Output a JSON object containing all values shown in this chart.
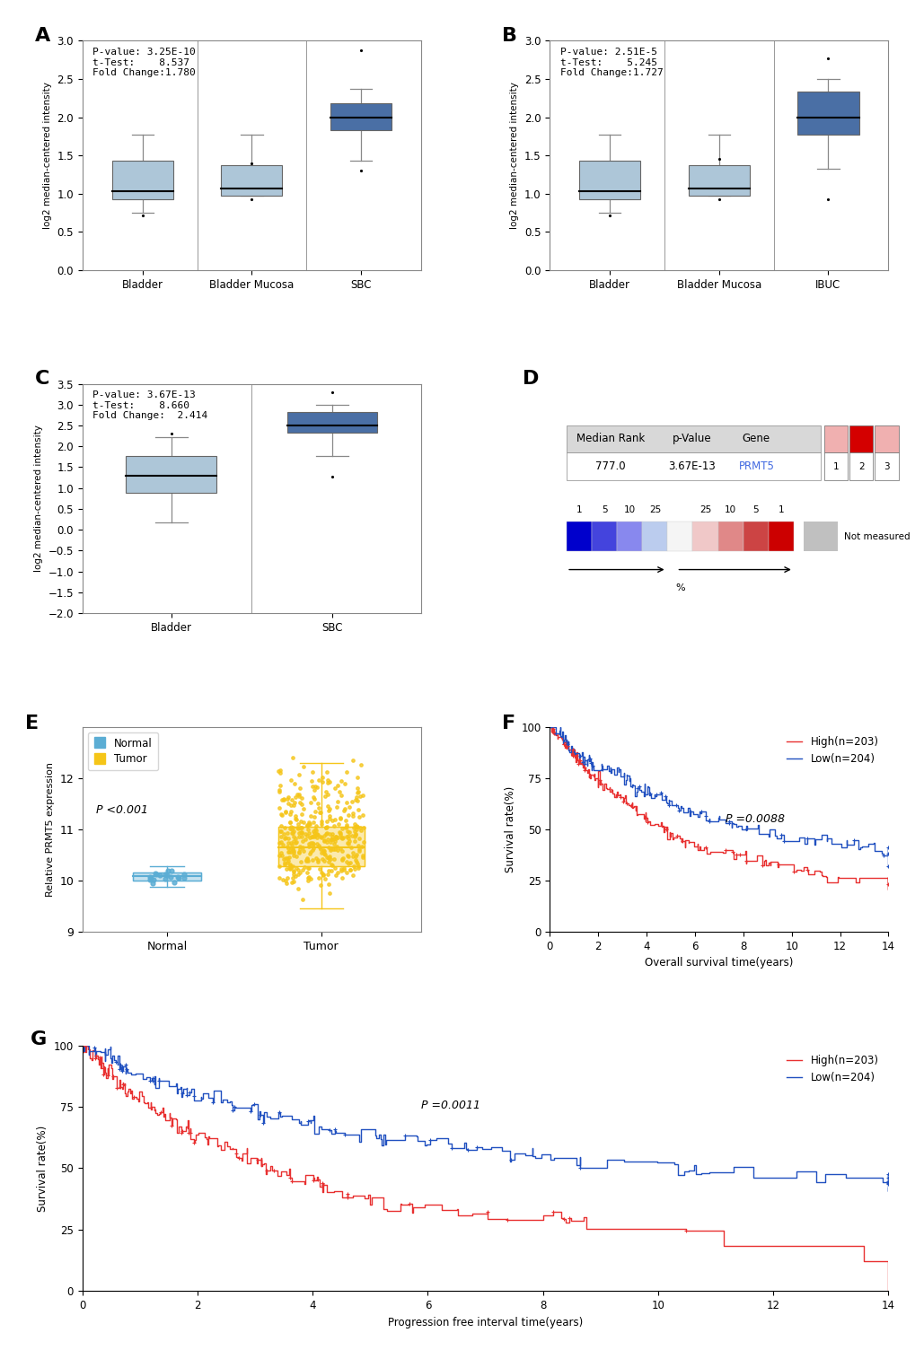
{
  "panel_A": {
    "title": "A",
    "annotation": "P-value: 3.25E-10\nt-Test:    8.537\nFold Change:1.780",
    "ylabel": "log2 median-centered intensity",
    "ylim": [
      0.0,
      3.0
    ],
    "yticks": [
      0.0,
      0.5,
      1.0,
      1.5,
      2.0,
      2.5,
      3.0
    ],
    "categories": [
      "Bladder",
      "Bladder Mucosa",
      "SBC"
    ],
    "boxes": [
      {
        "med": 1.03,
        "q1": 0.93,
        "q3": 1.43,
        "whislo": 0.75,
        "whishi": 1.77,
        "fliers_low": [
          0.72
        ],
        "fliers_high": [],
        "color": "#adc6d8"
      },
      {
        "med": 1.07,
        "q1": 0.97,
        "q3": 1.37,
        "whislo": 0.97,
        "whishi": 1.77,
        "fliers_low": [
          0.93
        ],
        "fliers_high": [
          1.4
        ],
        "color": "#adc6d8"
      },
      {
        "med": 2.0,
        "q1": 1.83,
        "q3": 2.18,
        "whislo": 1.43,
        "whishi": 2.37,
        "fliers_low": [
          1.3
        ],
        "fliers_high": [
          2.87
        ],
        "color": "#4a6fa5"
      }
    ]
  },
  "panel_B": {
    "title": "B",
    "annotation": "P-value: 2.51E-5\nt-Test:    5.245\nFold Change:1.727",
    "ylabel": "log2 median-centered intensity",
    "ylim": [
      0.0,
      3.0
    ],
    "yticks": [
      0.0,
      0.5,
      1.0,
      1.5,
      2.0,
      2.5,
      3.0
    ],
    "categories": [
      "Bladder",
      "Bladder Mucosa",
      "IBUC"
    ],
    "boxes": [
      {
        "med": 1.03,
        "q1": 0.93,
        "q3": 1.43,
        "whislo": 0.75,
        "whishi": 1.77,
        "fliers_low": [
          0.72
        ],
        "fliers_high": [],
        "color": "#adc6d8"
      },
      {
        "med": 1.07,
        "q1": 0.97,
        "q3": 1.37,
        "whislo": 0.97,
        "whishi": 1.77,
        "fliers_low": [
          0.93
        ],
        "fliers_high": [
          1.45
        ],
        "color": "#adc6d8"
      },
      {
        "med": 2.0,
        "q1": 1.77,
        "q3": 2.33,
        "whislo": 1.33,
        "whishi": 2.5,
        "fliers_low": [
          0.93
        ],
        "fliers_high": [
          2.77
        ],
        "color": "#4a6fa5"
      }
    ]
  },
  "panel_C": {
    "title": "C",
    "annotation": "P-value: 3.67E-13\nt-Test:    8.660\nFold Change:  2.414",
    "ylabel": "log2 median-centered intensity",
    "ylim": [
      -2.0,
      3.5
    ],
    "yticks": [
      -2.0,
      -1.5,
      -1.0,
      -0.5,
      0.0,
      0.5,
      1.0,
      1.5,
      2.0,
      2.5,
      3.0,
      3.5
    ],
    "categories": [
      "Bladder",
      "SBC"
    ],
    "boxes": [
      {
        "med": 1.3,
        "q1": 0.88,
        "q3": 1.77,
        "whislo": 0.17,
        "whishi": 2.23,
        "fliers_low": [],
        "fliers_high": [
          2.3
        ],
        "color": "#adc6d8"
      },
      {
        "med": 2.5,
        "q1": 2.33,
        "q3": 2.83,
        "whislo": 1.77,
        "whishi": 3.0,
        "fliers_low": [
          1.27
        ],
        "fliers_high": [
          3.3
        ],
        "color": "#4a6fa5"
      }
    ]
  },
  "panel_D": {
    "title": "D",
    "table_headers": [
      "Median Rank",
      "p-Value",
      "Gene"
    ],
    "table_row": [
      "777.0",
      "3.67E-13",
      "PRMT5"
    ],
    "gene_color": "#4169e1",
    "analysis_box_colors": [
      "#f0b0b0",
      "#d40000",
      "#f0b0b0"
    ],
    "analysis_labels": [
      "1",
      "2",
      "3"
    ],
    "color_scale": [
      "#0000cc",
      "#4444dd",
      "#8888ee",
      "#bbbbee",
      "#ffffff",
      "#eec4c4",
      "#dd8888",
      "#cc4444",
      "#cc0000"
    ],
    "scale_labels_top": [
      "1",
      "5",
      "10",
      "25",
      "",
      "25",
      "10",
      "5",
      "1"
    ],
    "not_measured_color": "#c0c0c0",
    "arrow_label": "%"
  },
  "panel_E": {
    "title": "E",
    "ylabel": "Relative PRMT5 expression",
    "ylim": [
      9.0,
      13.0
    ],
    "yticks": [
      9,
      10,
      11,
      12
    ],
    "categories": [
      "Normal",
      "Tumor"
    ],
    "normal_box": {
      "med": 10.08,
      "q1": 10.0,
      "q3": 10.15,
      "whislo": 9.88,
      "whishi": 10.28,
      "color": "#5badd4",
      "n_points": 19
    },
    "tumor_box": {
      "med": 10.65,
      "q1": 10.28,
      "q3": 11.05,
      "whislo": 9.45,
      "whishi": 12.3,
      "color": "#f5c518",
      "n_points": 408
    },
    "pvalue_text": "P <0.001",
    "legend_labels": [
      "Normal",
      "Tumor"
    ],
    "legend_colors": [
      "#5badd4",
      "#f5c518"
    ]
  },
  "panel_F": {
    "title": "F",
    "xlabel": "Overall survival time(years)",
    "ylabel": "Survival rate(%)",
    "ylim": [
      0,
      100
    ],
    "xlim": [
      0,
      14
    ],
    "xticks": [
      0,
      2,
      4,
      6,
      8,
      10,
      12,
      14
    ],
    "yticks": [
      0,
      25,
      50,
      75,
      100
    ],
    "high_label": "High(n=203)",
    "low_label": "Low(n=204)",
    "pvalue": "P =0.0088",
    "high_color": "#e83030",
    "low_color": "#2050c0"
  },
  "panel_G": {
    "title": "G",
    "xlabel": "Progression free interval time(years)",
    "ylabel": "Survival rate(%)",
    "ylim": [
      0,
      100
    ],
    "xlim": [
      0,
      14
    ],
    "xticks": [
      0,
      2,
      4,
      6,
      8,
      10,
      12,
      14
    ],
    "yticks": [
      0,
      25,
      50,
      75,
      100
    ],
    "high_label": "High(n=203)",
    "low_label": "Low(n=204)",
    "pvalue": "P =0.0011",
    "high_color": "#e83030",
    "low_color": "#2050c0"
  }
}
